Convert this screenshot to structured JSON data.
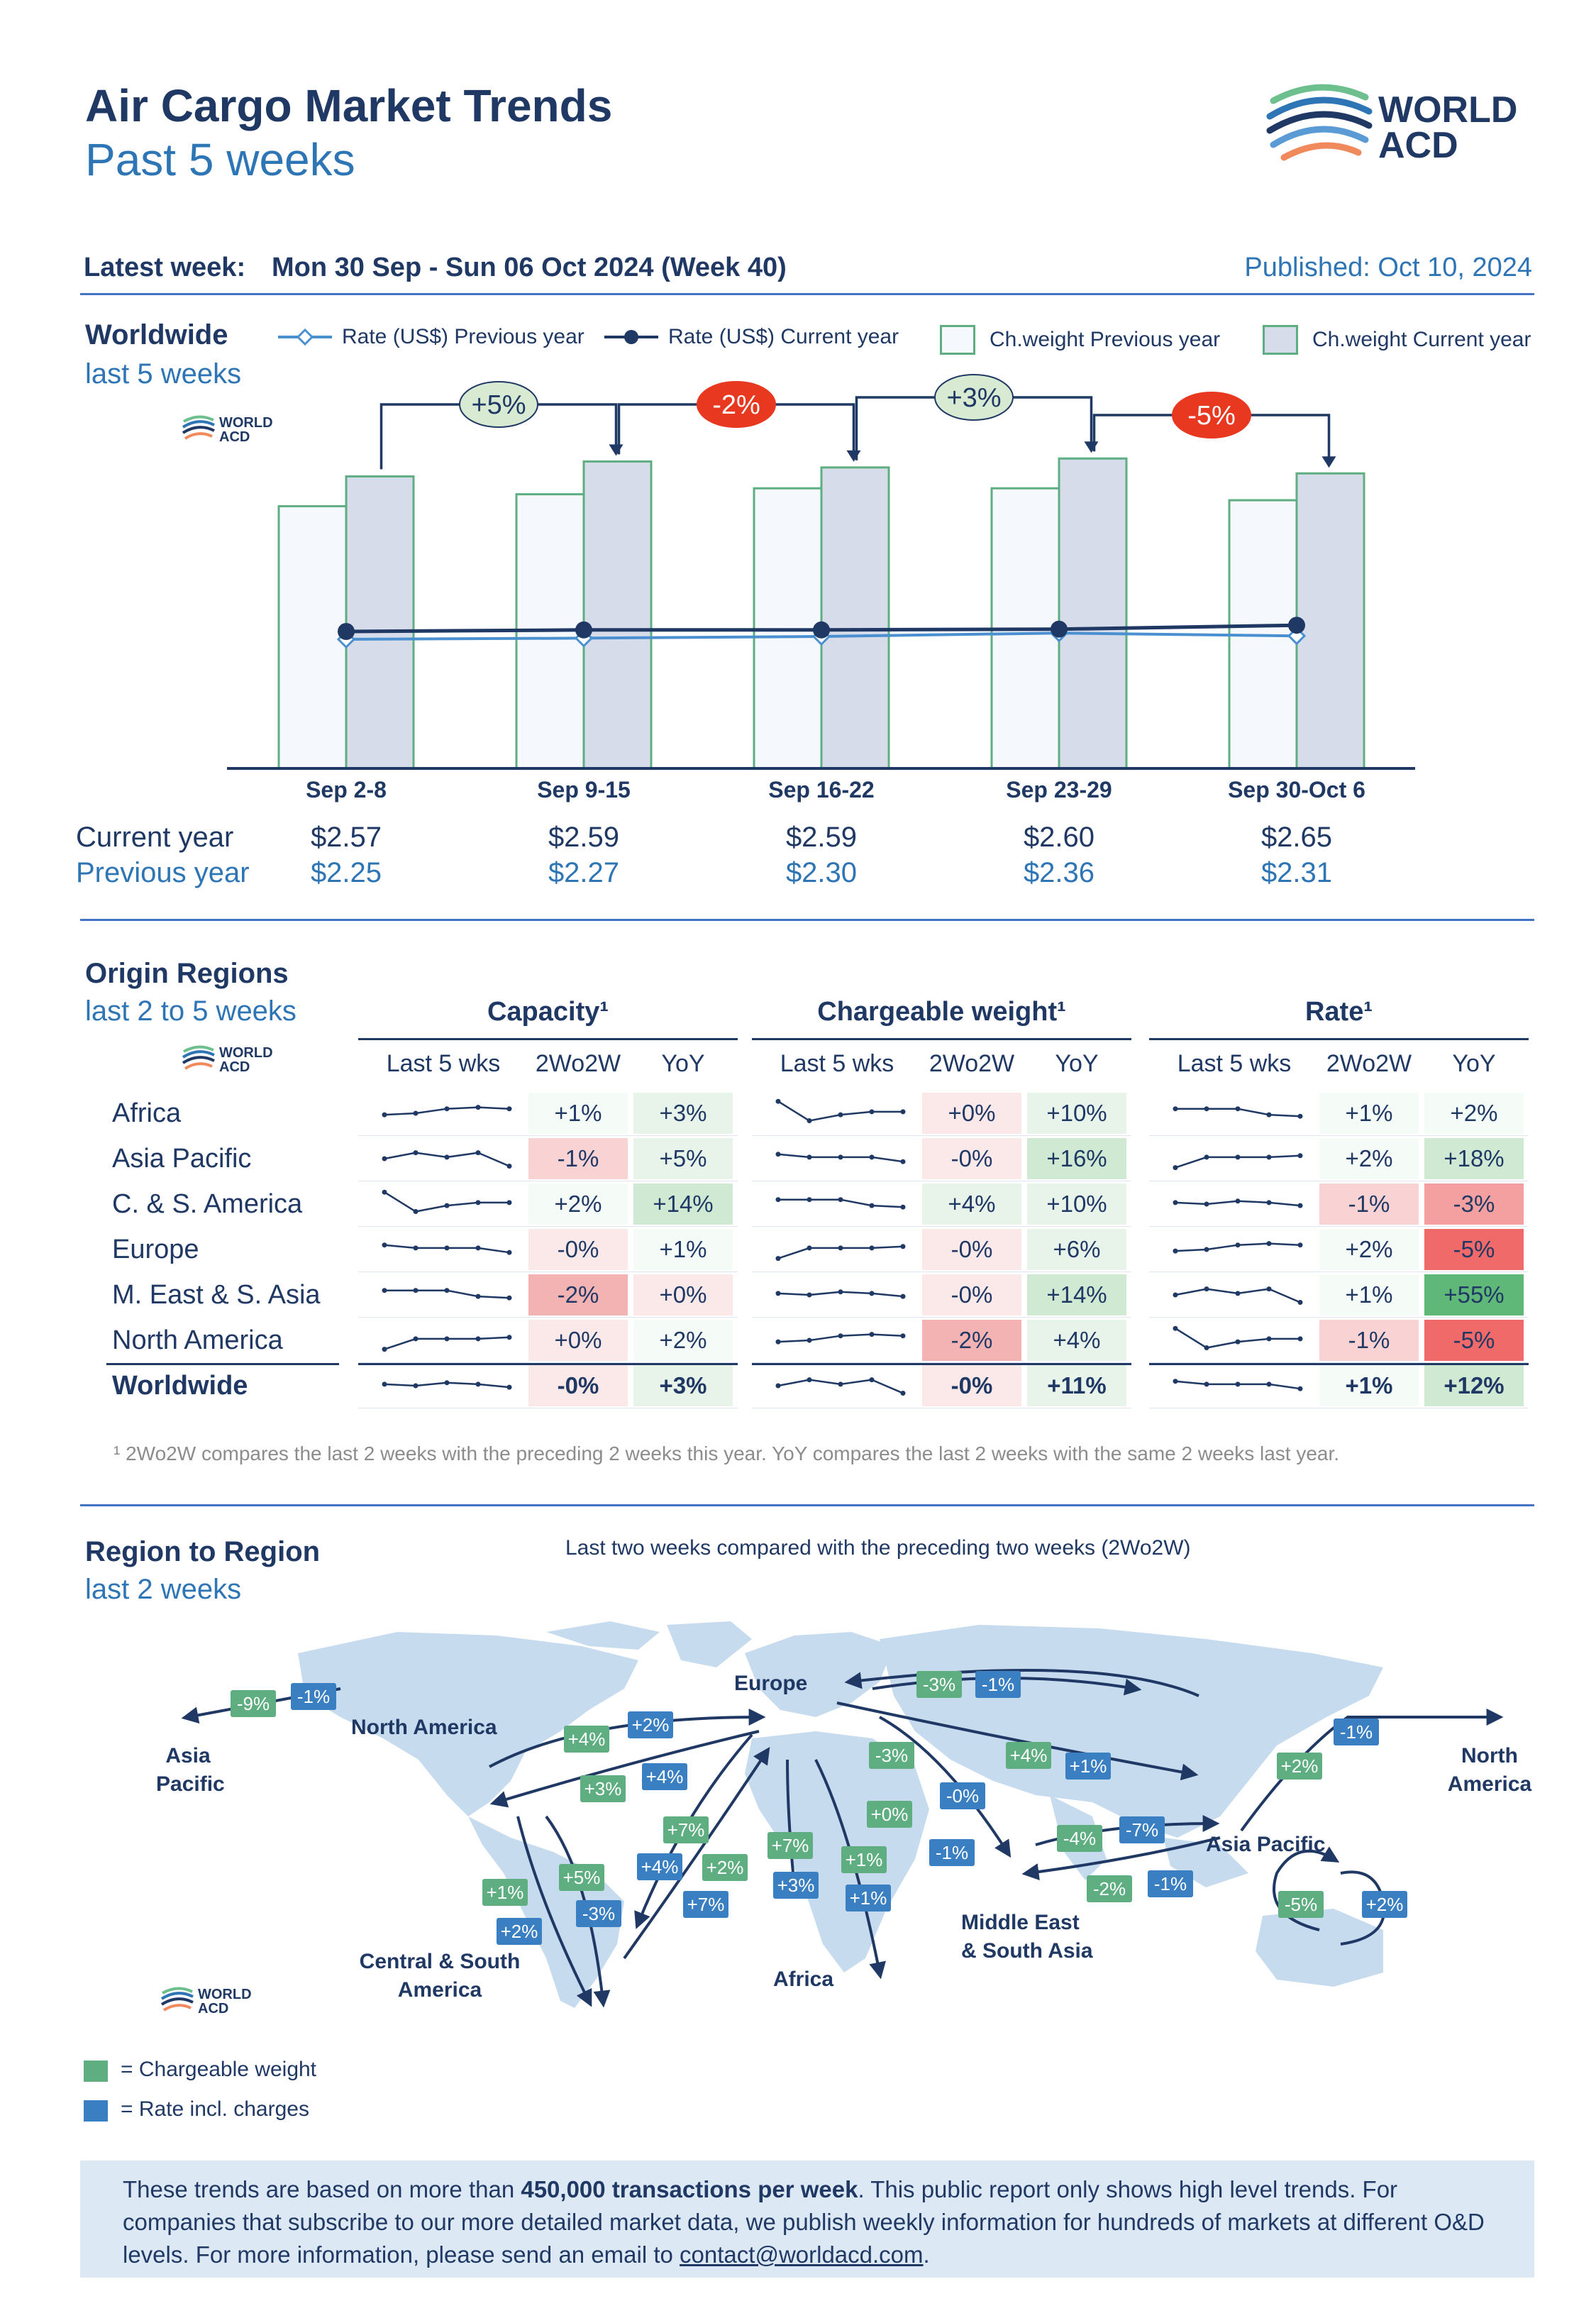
{
  "header": {
    "title": "Air Cargo Market Trends",
    "subtitle": "Past 5 weeks",
    "logo_line1": "WORLD",
    "logo_line2": "ACD",
    "latest_week_label": "Latest week:",
    "latest_week_value": "Mon 30 Sep - Sun 06 Oct 2024 (Week 40)",
    "published": "Published: Oct 10, 2024"
  },
  "worldwide": {
    "title": "Worldwide",
    "subtitle": "last 5 weeks",
    "legend": {
      "rate_prev": "Rate (US$) Previous year",
      "rate_cur": "Rate (US$) Current year",
      "cw_prev": "Ch.weight Previous year",
      "cw_cur": "Ch.weight Current year"
    },
    "row_cur_label": "Current year",
    "row_prev_label": "Previous year"
  },
  "chart_data": {
    "type": "bar",
    "categories": [
      "Sep 2-8",
      "Sep 9-15",
      "Sep 16-22",
      "Sep 23-29",
      "Sep 30-Oct 6"
    ],
    "series": [
      {
        "name": "Ch.weight Previous year",
        "type": "bar",
        "values": [
          0.88,
          0.92,
          0.94,
          0.94,
          0.9
        ]
      },
      {
        "name": "Ch.weight Current year",
        "type": "bar",
        "values": [
          0.98,
          1.03,
          1.01,
          1.04,
          0.99
        ]
      },
      {
        "name": "Rate (US$) Current year",
        "type": "line",
        "values": [
          2.57,
          2.59,
          2.59,
          2.6,
          2.65
        ]
      },
      {
        "name": "Rate (US$) Previous year",
        "type": "line",
        "values": [
          2.25,
          2.27,
          2.3,
          2.36,
          2.31
        ]
      }
    ],
    "rate_labels_current": [
      "$2.57",
      "$2.59",
      "$2.59",
      "$2.60",
      "$2.65"
    ],
    "rate_labels_previous": [
      "$2.25",
      "$2.27",
      "$2.30",
      "$2.36",
      "$2.31"
    ],
    "changes": [
      {
        "label": "+5%",
        "color": "#d9ead3"
      },
      {
        "label": "-2%",
        "color": "#e8381f"
      },
      {
        "label": "+3%",
        "color": "#d9ead3"
      },
      {
        "label": "-5%",
        "color": "#e8381f"
      }
    ],
    "colors": {
      "bar_prev": "#f5f8fc",
      "bar_cur": "#d7dcea",
      "bar_border": "#5fae82",
      "line_cur": "#1f3864",
      "line_prev": "#4a90d0"
    }
  },
  "origin": {
    "title": "Origin Regions",
    "subtitle": "last 2 to 5 weeks",
    "groups": [
      "Capacity¹",
      "Chargeable weight¹",
      "Rate¹"
    ],
    "cols": [
      "Last 5 wks",
      "2Wo2W",
      "YoY"
    ],
    "rows": [
      {
        "region": "Africa",
        "cap": [
          "+1%",
          "+3%"
        ],
        "cw": [
          "+0%",
          "+10%"
        ],
        "rate": [
          "+1%",
          "+2%"
        ]
      },
      {
        "region": "Asia Pacific",
        "cap": [
          "-1%",
          "+5%"
        ],
        "cw": [
          "-0%",
          "+16%"
        ],
        "rate": [
          "+2%",
          "+18%"
        ]
      },
      {
        "region": "C. & S. America",
        "cap": [
          "+2%",
          "+14%"
        ],
        "cw": [
          "+4%",
          "+10%"
        ],
        "rate": [
          "-1%",
          "-3%"
        ]
      },
      {
        "region": "Europe",
        "cap": [
          "-0%",
          "+1%"
        ],
        "cw": [
          "-0%",
          "+6%"
        ],
        "rate": [
          "+2%",
          "-5%"
        ]
      },
      {
        "region": "M. East & S. Asia",
        "cap": [
          "-2%",
          "+0%"
        ],
        "cw": [
          "-0%",
          "+14%"
        ],
        "rate": [
          "+1%",
          "+55%"
        ]
      },
      {
        "region": "North America",
        "cap": [
          "+0%",
          "+2%"
        ],
        "cw": [
          "-2%",
          "+4%"
        ],
        "rate": [
          "-1%",
          "-5%"
        ]
      },
      {
        "region": "Worldwide",
        "cap": [
          "-0%",
          "+3%"
        ],
        "cw": [
          "-0%",
          "+11%"
        ],
        "rate": [
          "+1%",
          "+12%"
        ]
      }
    ],
    "footnote": "¹ 2Wo2W compares the last 2 weeks with the preceding 2 weeks this year. YoY compares the last 2 weeks with the same 2 weeks last year."
  },
  "r2r": {
    "title": "Region to Region",
    "subtitle": "last 2 weeks",
    "caption": "Last two weeks compared with the preceding two weeks (2Wo2W)",
    "labels": {
      "asia_left": "Asia\nPacific",
      "north_america": "North America",
      "europe": "Europe",
      "north_america_right": "North\nAmerica",
      "asia_pacific": "Asia Pacific",
      "central_south_america": "Central & South\nAmerica",
      "africa": "Africa",
      "mesa": "Middle East\n& South Asia"
    },
    "badges": [
      {
        "t": "-9%",
        "c": "g",
        "x": 325,
        "y": 2382
      },
      {
        "t": "-1%",
        "c": "b",
        "x": 410,
        "y": 2372
      },
      {
        "t": "+4%",
        "c": "g",
        "x": 795,
        "y": 2432
      },
      {
        "t": "+2%",
        "c": "b",
        "x": 885,
        "y": 2412
      },
      {
        "t": "+3%",
        "c": "g",
        "x": 818,
        "y": 2502
      },
      {
        "t": "+4%",
        "c": "b",
        "x": 905,
        "y": 2485
      },
      {
        "t": "+7%",
        "c": "g",
        "x": 935,
        "y": 2560
      },
      {
        "t": "+4%",
        "c": "b",
        "x": 898,
        "y": 2612
      },
      {
        "t": "+2%",
        "c": "g",
        "x": 990,
        "y": 2613
      },
      {
        "t": "+7%",
        "c": "b",
        "x": 963,
        "y": 2665
      },
      {
        "t": "+7%",
        "c": "g",
        "x": 1082,
        "y": 2582
      },
      {
        "t": "+3%",
        "c": "b",
        "x": 1090,
        "y": 2638
      },
      {
        "t": "+1%",
        "c": "g",
        "x": 1186,
        "y": 2602
      },
      {
        "t": "+1%",
        "c": "b",
        "x": 1192,
        "y": 2656
      },
      {
        "t": "+1%",
        "c": "g",
        "x": 680,
        "y": 2648
      },
      {
        "t": "+5%",
        "c": "g",
        "x": 788,
        "y": 2627
      },
      {
        "t": "+2%",
        "c": "b",
        "x": 700,
        "y": 2703
      },
      {
        "t": "-3%",
        "c": "b",
        "x": 812,
        "y": 2678
      },
      {
        "t": "-3%",
        "c": "g",
        "x": 1292,
        "y": 2355
      },
      {
        "t": "-1%",
        "c": "b",
        "x": 1375,
        "y": 2355
      },
      {
        "t": "-3%",
        "c": "g",
        "x": 1225,
        "y": 2455
      },
      {
        "t": "+4%",
        "c": "g",
        "x": 1418,
        "y": 2455
      },
      {
        "t": "+1%",
        "c": "b",
        "x": 1502,
        "y": 2470
      },
      {
        "t": "+0%",
        "c": "g",
        "x": 1222,
        "y": 2538
      },
      {
        "t": "-0%",
        "c": "b",
        "x": 1325,
        "y": 2512
      },
      {
        "t": "-1%",
        "c": "b",
        "x": 1310,
        "y": 2592
      },
      {
        "t": "-4%",
        "c": "g",
        "x": 1490,
        "y": 2572
      },
      {
        "t": "-7%",
        "c": "b",
        "x": 1578,
        "y": 2560
      },
      {
        "t": "-2%",
        "c": "g",
        "x": 1532,
        "y": 2643
      },
      {
        "t": "-1%",
        "c": "b",
        "x": 1618,
        "y": 2636
      },
      {
        "t": "-1%",
        "c": "b",
        "x": 1880,
        "y": 2422
      },
      {
        "t": "+2%",
        "c": "g",
        "x": 1800,
        "y": 2470
      },
      {
        "t": "-5%",
        "c": "g",
        "x": 1802,
        "y": 2665
      },
      {
        "t": "+2%",
        "c": "b",
        "x": 1920,
        "y": 2665
      }
    ],
    "legend_cw": "= Chargeable weight",
    "legend_rate": "= Rate incl. charges"
  },
  "footer": {
    "text_a": "These trends are based on more than ",
    "text_bold": "450,000 transactions per week",
    "text_b": ". This public report only shows high level trends. For companies that subscribe to our more detailed market data, we publish weekly information for hundreds of markets at different O&D levels. For more information, please send an email to ",
    "email": "contact@worldacd.com",
    "text_c": "."
  }
}
